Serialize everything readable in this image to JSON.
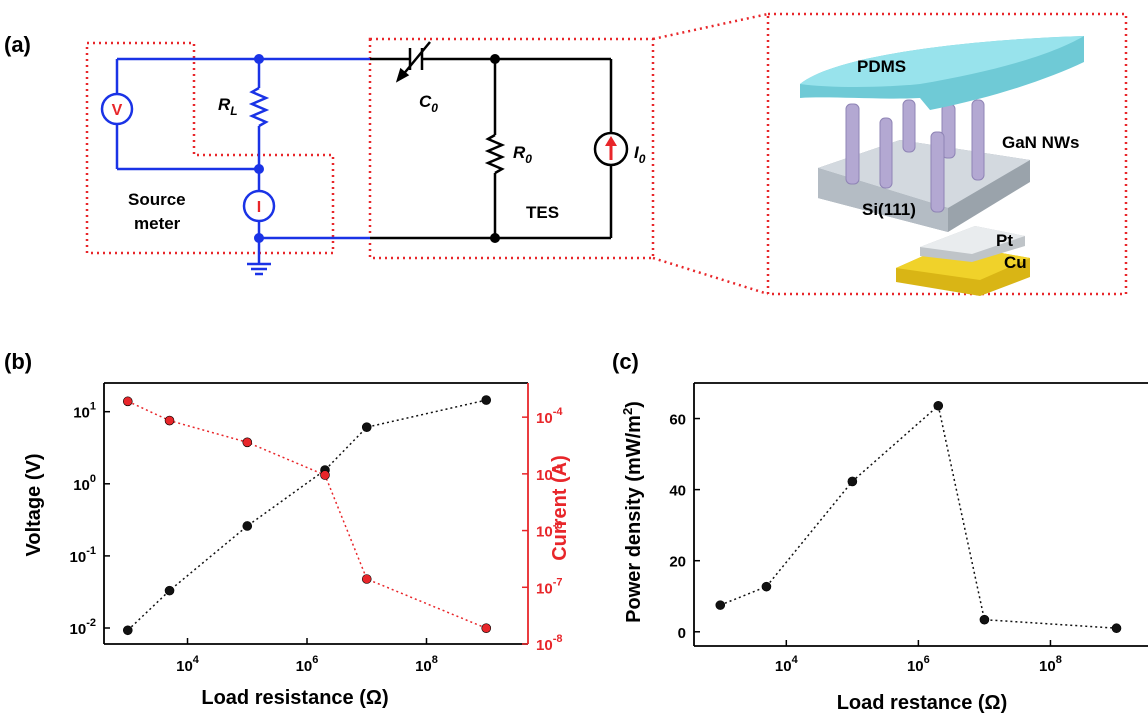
{
  "panel_labels": {
    "a": "(a)",
    "b": "(b)",
    "c": "(c)"
  },
  "circuit": {
    "voltmeter_symbol": "V",
    "ammeter_symbol": "I",
    "load_resistor_main": "R",
    "load_resistor_sub": "L",
    "capacitor_main": "C",
    "capacitor_sub": "0",
    "resistor_main": "R",
    "resistor_sub": "0",
    "current_source_main": "I",
    "current_source_sub": "0",
    "source_meter_line1": "Source",
    "source_meter_line2": "meter",
    "tes_label": "TES"
  },
  "device": {
    "pdms_label": "PDMS",
    "nanowires_label": "GaN NWs",
    "substrate_label": "Si(111)",
    "pt_label": "Pt",
    "cu_label": "Cu"
  },
  "colors": {
    "wire_blue": "#1a33e6",
    "circuit_black": "#000000",
    "dotted_red": "#e8262a",
    "current_red": "#e8262a",
    "pdms": "#86dde6",
    "nanowire": "#b3a8d2",
    "silicon": "#c8cfd6",
    "copper": "#e5c21a"
  },
  "chart_data": [
    {
      "type": "line",
      "panel": "(b)",
      "xscale": "log",
      "xlabel_main": "Load resistance (",
      "xlabel_unit": "Ω",
      "xlabel_end": ")",
      "xticks": [
        "10^4",
        "10^6",
        "10^8"
      ],
      "xlim": [
        400,
        5000000000
      ],
      "ylabel": "Voltage (V)",
      "yscale": "log",
      "ylim": [
        0.006,
        25
      ],
      "yticks": [
        "10^-2",
        "10^-1",
        "10^0",
        "10^1"
      ],
      "y2label": "Current (A)",
      "y2scale": "log",
      "y2lim": [
        1e-08,
        0.0004
      ],
      "y2ticks": [
        "10^-8",
        "10^-7",
        "10^-6",
        "10^-5",
        "10^-4"
      ],
      "x": [
        1000,
        5000,
        100000,
        2000000,
        10000000,
        1000000000
      ],
      "series": [
        {
          "axis": "left",
          "color": "#111111",
          "values": [
            0.0093,
            0.033,
            0.26,
            1.55,
            6.1,
            14.5
          ]
        },
        {
          "axis": "right",
          "color": "#e8262a",
          "values": [
            0.00019,
            8.7e-05,
            3.6e-05,
            9.5e-06,
            1.4e-07,
            1.9e-08
          ]
        }
      ]
    },
    {
      "type": "line",
      "panel": "(c)",
      "xscale": "log",
      "xlabel_main": "Load restance (",
      "xlabel_unit": "Ω",
      "xlabel_end": ")",
      "xticks": [
        "10^4",
        "10^6",
        "10^8"
      ],
      "xlim": [
        400,
        3000000000
      ],
      "ylabel_main": "Power density (mW/m",
      "ylabel_sup": "2",
      "ylabel_end": ")",
      "ylim": [
        -4,
        70
      ],
      "yticks": [
        "0",
        "20",
        "40",
        "60"
      ],
      "x": [
        1000,
        5000,
        100000,
        2000000,
        10000000,
        1000000000
      ],
      "series": [
        {
          "color": "#111111",
          "values": [
            7.5,
            12.7,
            42.3,
            63.6,
            3.4,
            1.0
          ]
        }
      ]
    }
  ]
}
